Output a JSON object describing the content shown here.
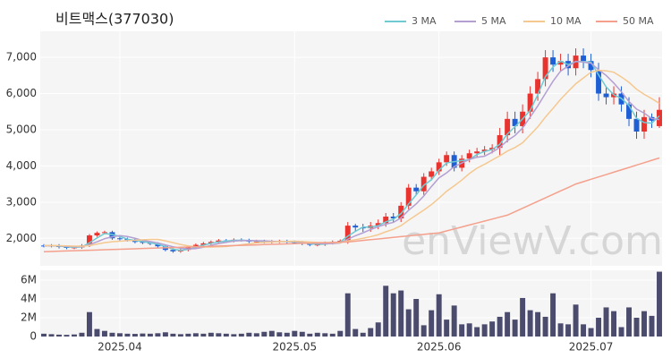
{
  "chart_data": [
    {
      "type": "candlestick",
      "title": "비트맥스(377030)",
      "watermark": "enViewV.com",
      "up_color": "#e8332f",
      "down_color": "#1f5fd6",
      "open": [
        1800,
        1790,
        1800,
        1760,
        1740,
        1750,
        1800,
        2080,
        2150,
        2170,
        2000,
        1980,
        1950,
        1900,
        1880,
        1850,
        1780,
        1680,
        1640,
        1680,
        1760,
        1820,
        1860,
        1900,
        1940,
        1930,
        1960,
        1950,
        1910,
        1920,
        1900,
        1910,
        1920,
        1900,
        1890,
        1850,
        1820,
        1830,
        1870,
        1900,
        1950,
        2350,
        2300,
        2280,
        2350,
        2420,
        2600,
        2550,
        2900,
        3400,
        3300,
        3700,
        3850,
        4100,
        4300,
        3950,
        4200,
        4350,
        4400,
        4450,
        4500,
        4850,
        5300,
        5100,
        5500,
        6000,
        6400,
        7000,
        6800,
        6900,
        6700,
        7050,
        6900,
        6650,
        6000,
        5900,
        6000,
        5700,
        5300,
        4950,
        5350,
        5100
      ],
      "high": [
        1840,
        1840,
        1840,
        1800,
        1790,
        1840,
        2120,
        2190,
        2210,
        2210,
        2040,
        2020,
        1990,
        1940,
        1920,
        1890,
        1820,
        1720,
        1720,
        1800,
        1860,
        1900,
        1940,
        1980,
        1980,
        2000,
        2000,
        1990,
        1960,
        1960,
        1950,
        1960,
        1960,
        1940,
        1930,
        1890,
        1870,
        1910,
        1940,
        1970,
        2450,
        2400,
        2400,
        2450,
        2520,
        2700,
        2700,
        3000,
        3500,
        3500,
        3800,
        3950,
        4200,
        4400,
        4400,
        4300,
        4450,
        4500,
        4550,
        4600,
        5050,
        5500,
        5500,
        5700,
        6200,
        6600,
        7200,
        7200,
        7100,
        7100,
        7250,
        7250,
        7100,
        6850,
        6200,
        6200,
        6200,
        5900,
        5500,
        5550,
        5450,
        5900
      ],
      "low": [
        1750,
        1750,
        1720,
        1700,
        1700,
        1710,
        1760,
        2040,
        2110,
        1960,
        1940,
        1910,
        1860,
        1840,
        1810,
        1740,
        1640,
        1600,
        1600,
        1640,
        1720,
        1780,
        1820,
        1860,
        1890,
        1890,
        1910,
        1870,
        1870,
        1860,
        1860,
        1870,
        1860,
        1850,
        1810,
        1780,
        1780,
        1790,
        1830,
        1860,
        1850,
        2200,
        2180,
        2180,
        2250,
        2320,
        2450,
        2450,
        2800,
        3200,
        3200,
        3600,
        3750,
        4000,
        3850,
        3850,
        4100,
        4250,
        4300,
        4350,
        4300,
        4650,
        4900,
        4900,
        5300,
        5800,
        6200,
        6600,
        6600,
        6500,
        6500,
        6700,
        6450,
        5800,
        5700,
        5700,
        5500,
        5100,
        4750,
        4750,
        5050,
        5050
      ],
      "close": [
        1790,
        1800,
        1760,
        1740,
        1750,
        1800,
        2080,
        2150,
        2170,
        2000,
        1980,
        1950,
        1900,
        1880,
        1850,
        1780,
        1680,
        1640,
        1680,
        1760,
        1820,
        1860,
        1900,
        1940,
        1930,
        1960,
        1950,
        1910,
        1920,
        1900,
        1910,
        1920,
        1900,
        1890,
        1850,
        1820,
        1830,
        1870,
        1900,
        1930,
        2350,
        2300,
        2280,
        2350,
        2420,
        2600,
        2550,
        2900,
        3400,
        3300,
        3700,
        3850,
        4100,
        4300,
        3950,
        4200,
        4350,
        4400,
        4450,
        4500,
        4850,
        5300,
        5100,
        5500,
        6000,
        6400,
        7000,
        6800,
        6900,
        6700,
        7050,
        6900,
        6650,
        6000,
        5900,
        6000,
        5700,
        5300,
        4950,
        5350,
        5250,
        5550
      ],
      "series": [
        {
          "name": "3 MA",
          "color": "#6fcad2",
          "values": [
            1795,
            1797,
            1783,
            1767,
            1750,
            1763,
            1877,
            2010,
            2133,
            2107,
            2050,
            1977,
            1943,
            1910,
            1877,
            1837,
            1770,
            1700,
            1667,
            1693,
            1753,
            1813,
            1860,
            1900,
            1923,
            1943,
            1947,
            1940,
            1927,
            1910,
            1910,
            1910,
            1910,
            1903,
            1880,
            1853,
            1833,
            1840,
            1867,
            1900,
            2060,
            2193,
            2310,
            2310,
            2350,
            2457,
            2523,
            2683,
            2950,
            3200,
            3467,
            3617,
            3883,
            4083,
            4117,
            4150,
            4167,
            4317,
            4400,
            4450,
            4600,
            4883,
            5083,
            5300,
            5533,
            5967,
            6467,
            6733,
            6900,
            6800,
            6883,
            6883,
            6867,
            6517,
            6183,
            5967,
            5867,
            5667,
            5317,
            5200,
            5183,
            5383
          ]
        },
        {
          "name": "5 MA",
          "color": "#b49fd2",
          "values": [
            1795,
            1797,
            1790,
            1778,
            1768,
            1770,
            1826,
            1904,
            1990,
            2040,
            2076,
            2050,
            2000,
            1942,
            1912,
            1872,
            1818,
            1766,
            1726,
            1708,
            1716,
            1752,
            1804,
            1856,
            1890,
            1922,
            1936,
            1938,
            1934,
            1928,
            1918,
            1912,
            1910,
            1908,
            1894,
            1876,
            1858,
            1852,
            1854,
            1870,
            1976,
            2070,
            2152,
            2242,
            2320,
            2390,
            2440,
            2564,
            2774,
            2950,
            3170,
            3430,
            3670,
            3810,
            3980,
            4080,
            4180,
            4240,
            4270,
            4380,
            4510,
            4700,
            4840,
            5050,
            5350,
            5660,
            6000,
            6340,
            6620,
            6760,
            6890,
            6870,
            6840,
            6660,
            6500,
            6290,
            6050,
            5780,
            5570,
            5460,
            5310,
            5280
          ]
        },
        {
          "name": "10 MA",
          "color": "#f5c890",
          "values": [
            1800,
            1800,
            1795,
            1790,
            1785,
            1780,
            1800,
            1840,
            1880,
            1905,
            1920,
            1935,
            1945,
            1960,
            1970,
            1970,
            1930,
            1880,
            1830,
            1790,
            1770,
            1760,
            1760,
            1765,
            1775,
            1795,
            1820,
            1850,
            1875,
            1890,
            1900,
            1910,
            1915,
            1920,
            1910,
            1900,
            1885,
            1880,
            1880,
            1880,
            1925,
            1965,
            2000,
            2045,
            2100,
            2180,
            2250,
            2350,
            2500,
            2640,
            2780,
            2930,
            3110,
            3300,
            3450,
            3610,
            3790,
            3940,
            4045,
            4165,
            4280,
            4410,
            4510,
            4640,
            4860,
            5080,
            5350,
            5590,
            5840,
            6060,
            6270,
            6430,
            6590,
            6640,
            6630,
            6590,
            6460,
            6310,
            6120,
            5980,
            5860,
            5730
          ]
        },
        {
          "name": "50 MA",
          "color": "#f4a08c",
          "values": [
            1630,
            1637,
            1644,
            1650,
            1657,
            1664,
            1670,
            1677,
            1684,
            1691,
            1698,
            1704,
            1711,
            1718,
            1725,
            1731,
            1738,
            1745,
            1752,
            1758,
            1765,
            1772,
            1779,
            1786,
            1792,
            1799,
            1806,
            1813,
            1819,
            1826,
            1833,
            1840,
            1846,
            1853,
            1860,
            1867,
            1873,
            1880,
            1887,
            1894,
            1900,
            1921,
            1942,
            1963,
            1983,
            2004,
            2025,
            2046,
            2067,
            2088,
            2108,
            2129,
            2150,
            2204,
            2259,
            2313,
            2368,
            2422,
            2477,
            2531,
            2586,
            2640,
            2736,
            2831,
            2927,
            3022,
            3118,
            3213,
            3309,
            3404,
            3500,
            3565,
            3631,
            3696,
            3762,
            3827,
            3893,
            3958,
            4024,
            4089,
            4155,
            4220
          ]
        }
      ],
      "ylim": [
        1240,
        7720
      ],
      "yticks": [
        {
          "value": 2000,
          "label": "2,000"
        },
        {
          "value": 3000,
          "label": "3,000"
        },
        {
          "value": 4000,
          "label": "4,000"
        },
        {
          "value": 5000,
          "label": "5,000"
        },
        {
          "value": 6000,
          "label": "6,000"
        },
        {
          "value": 7000,
          "label": "7,000"
        }
      ],
      "grid": true
    },
    {
      "type": "bar",
      "color": "#4b4b6e",
      "categories": [
        null,
        null,
        null,
        null,
        null,
        null,
        null,
        null,
        null,
        null,
        "2025.04",
        null,
        null,
        null,
        null,
        null,
        null,
        null,
        null,
        null,
        null,
        null,
        null,
        null,
        null,
        null,
        null,
        null,
        null,
        null,
        null,
        null,
        null,
        "2025.05",
        null,
        null,
        null,
        null,
        null,
        null,
        null,
        null,
        null,
        null,
        null,
        null,
        null,
        null,
        null,
        null,
        null,
        null,
        "2025.06",
        null,
        null,
        null,
        null,
        null,
        null,
        null,
        null,
        null,
        null,
        null,
        null,
        null,
        null,
        null,
        null,
        null,
        null,
        null,
        "2025.07",
        null,
        null,
        null,
        null,
        null,
        null,
        null,
        null,
        null
      ],
      "values": [
        300000,
        250000,
        200000,
        180000,
        220000,
        400000,
        2600000,
        800000,
        600000,
        400000,
        350000,
        300000,
        280000,
        320000,
        300000,
        350000,
        450000,
        300000,
        250000,
        300000,
        350000,
        300000,
        400000,
        350000,
        300000,
        250000,
        300000,
        400000,
        350000,
        500000,
        600000,
        450000,
        400000,
        600000,
        500000,
        300000,
        400000,
        350000,
        300000,
        600000,
        4600000,
        800000,
        400000,
        900000,
        1500000,
        5400000,
        4600000,
        4900000,
        2900000,
        4000000,
        1200000,
        2800000,
        4500000,
        1800000,
        3300000,
        1300000,
        1400000,
        1000000,
        1300000,
        1600000,
        2100000,
        2600000,
        1800000,
        4100000,
        2800000,
        2600000,
        2100000,
        4600000,
        1400000,
        1300000,
        3400000,
        1300000,
        900000,
        2000000,
        3100000,
        2700000,
        1000000,
        3100000,
        2000000,
        2700000,
        2200000,
        6900000
      ],
      "ylim": [
        0,
        7050000
      ],
      "yticks": [
        0,
        {
          "value": 2000000,
          "label": "2M"
        },
        {
          "value": 4000000,
          "label": "4M"
        },
        {
          "value": 6000000,
          "label": "6M"
        }
      ],
      "grid": true
    }
  ]
}
